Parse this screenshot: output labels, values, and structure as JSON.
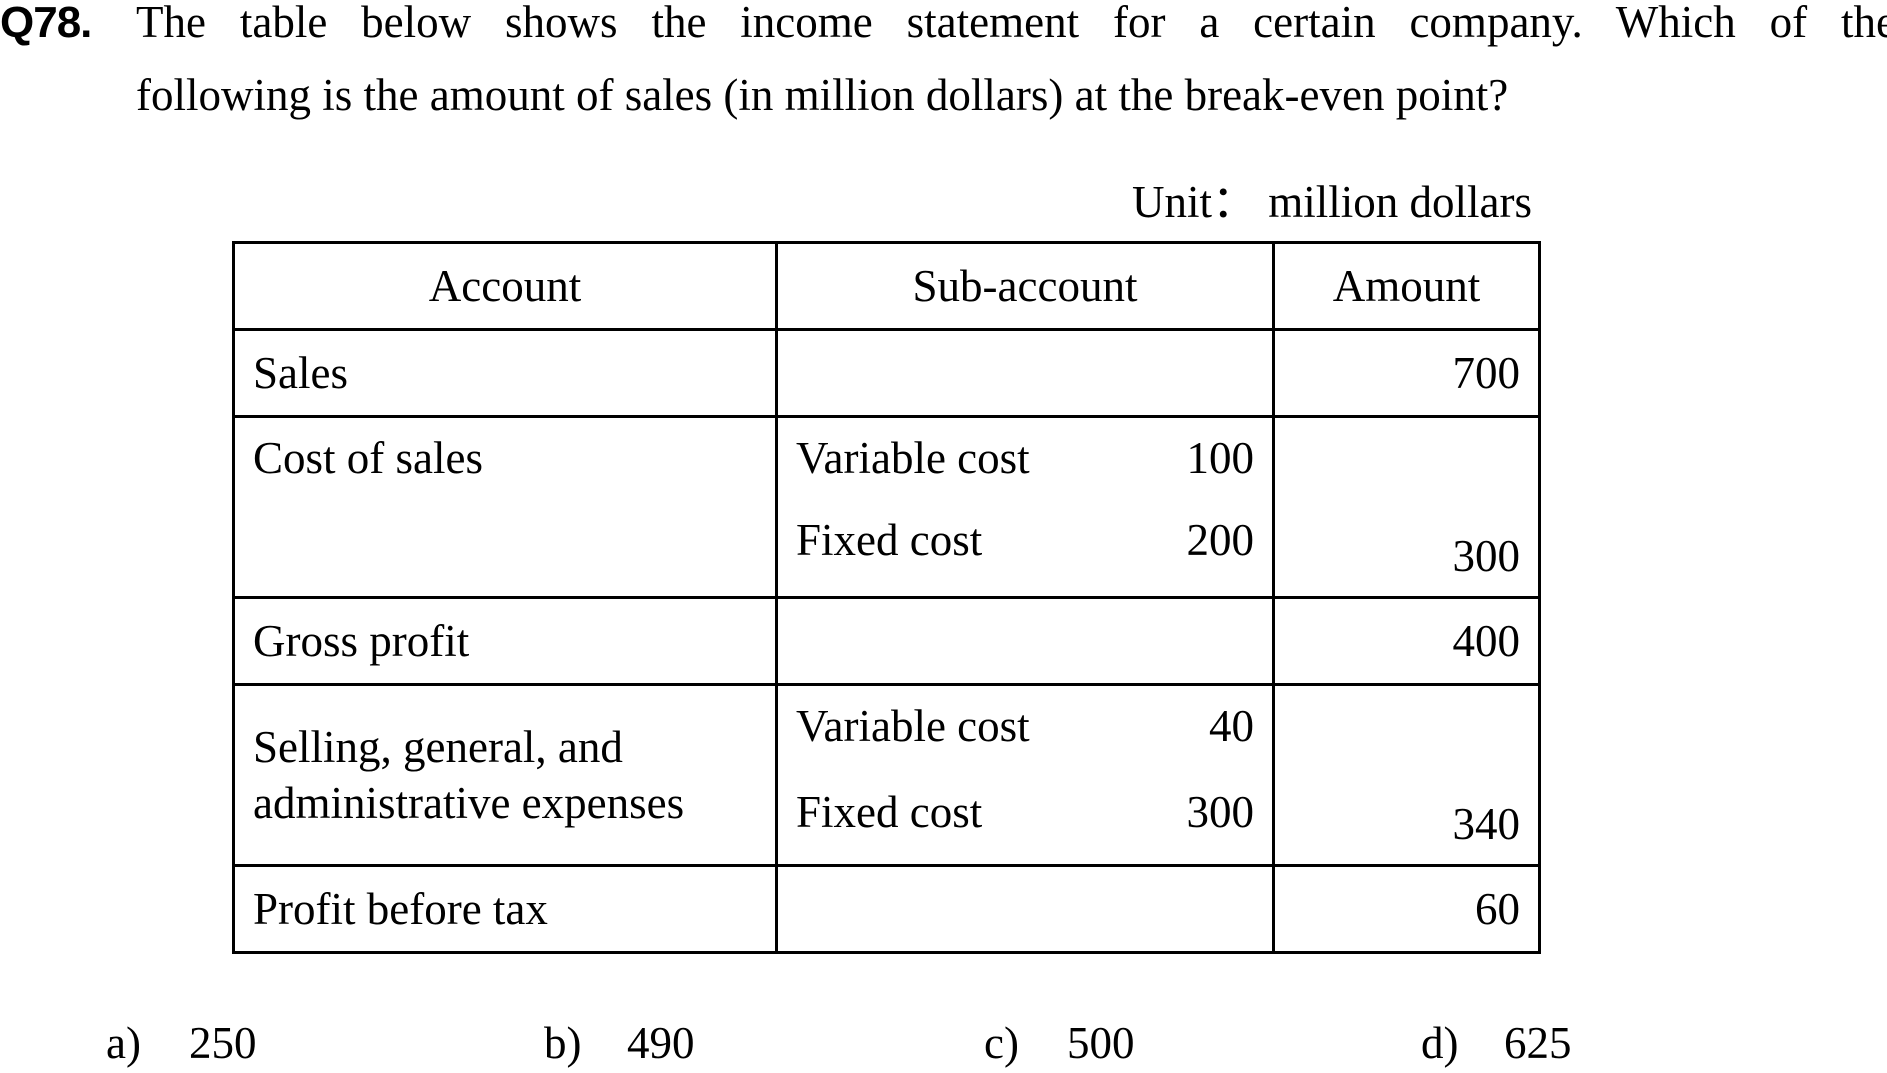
{
  "question": {
    "number": "Q78.",
    "text_line1": "The table below shows the income statement for a certain company.  Which of the",
    "text_line2": "following is the amount of sales (in million dollars) at the break-even point?"
  },
  "unit_label": "Unit： million dollars",
  "table": {
    "headers": [
      "Account",
      "Sub-account",
      "Amount"
    ],
    "rows": [
      {
        "account": "Sales",
        "amount": "700"
      },
      {
        "account": "Cost of sales",
        "sub": [
          {
            "label": "Variable cost",
            "value": "100"
          },
          {
            "label": "Fixed cost",
            "value": "200"
          }
        ],
        "amount": "300"
      },
      {
        "account": "Gross profit",
        "amount": "400"
      },
      {
        "account_line1": "Selling, general, and",
        "account_line2": "administrative expenses",
        "sub": [
          {
            "label": "Variable cost",
            "value": "40"
          },
          {
            "label": "Fixed cost",
            "value": "300"
          }
        ],
        "amount": "340"
      },
      {
        "account": "Profit before tax",
        "amount": "60"
      }
    ]
  },
  "choices": [
    {
      "letter": "a)",
      "value": "250"
    },
    {
      "letter": "b)",
      "value": "490"
    },
    {
      "letter": "c)",
      "value": "500"
    },
    {
      "letter": "d)",
      "value": "625"
    }
  ]
}
